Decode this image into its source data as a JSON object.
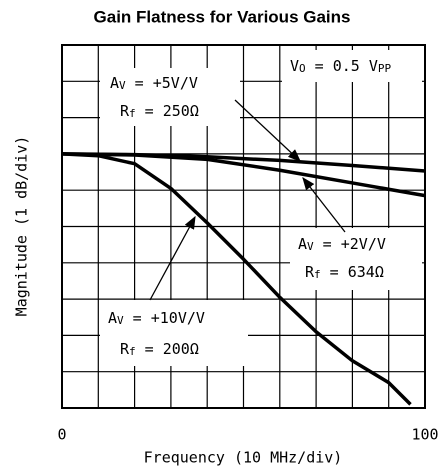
{
  "chart_data": {
    "type": "line",
    "title": "Gain Flatness for Various Gains",
    "xlabel": "Frequency (10 MHz/div)",
    "ylabel": "Magnitude (1 dB/div)",
    "xlim": [
      0,
      100
    ],
    "ylim": [
      -7,
      3
    ],
    "xticks": [
      0,
      100
    ],
    "xgrid": [
      10,
      20,
      30,
      40,
      50,
      60,
      70,
      80,
      90
    ],
    "ygrid": [
      -6,
      -5,
      -4,
      -3,
      -2,
      -1,
      0,
      1,
      2
    ],
    "grid": true,
    "color": "#000000",
    "annotation": [
      {
        "t": "V"
      },
      {
        "t": "O",
        "sub": true
      },
      {
        "t": " = 0.5 V"
      },
      {
        "t": "PP",
        "sub": true
      }
    ],
    "series": [
      {
        "label": [
          [
            {
              "t": "A"
            },
            {
              "t": "V",
              "sub": true
            },
            {
              "t": " = +5V/V"
            }
          ],
          [
            {
              "t": "R"
            },
            {
              "t": "f",
              "sub": true
            },
            {
              "t": " = 250Ω"
            }
          ]
        ],
        "x": [
          0,
          20,
          40,
          60,
          80,
          100
        ],
        "values": [
          0,
          -0.02,
          -0.08,
          -0.18,
          -0.32,
          -0.47
        ]
      },
      {
        "label": [
          [
            {
              "t": "A"
            },
            {
              "t": "V",
              "sub": true
            },
            {
              "t": " = +2V/V"
            }
          ],
          [
            {
              "t": "R"
            },
            {
              "t": "f",
              "sub": true
            },
            {
              "t": " = 634Ω"
            }
          ]
        ],
        "x": [
          0,
          20,
          40,
          60,
          80,
          100
        ],
        "values": [
          0,
          -0.03,
          -0.15,
          -0.45,
          -0.8,
          -1.15
        ]
      },
      {
        "label": [
          [
            {
              "t": "A"
            },
            {
              "t": "V",
              "sub": true
            },
            {
              "t": " = +10V/V"
            }
          ],
          [
            {
              "t": "R"
            },
            {
              "t": "f",
              "sub": true
            },
            {
              "t": " = 200Ω"
            }
          ]
        ],
        "x": [
          0,
          10,
          20,
          30,
          40,
          50,
          60,
          70,
          80,
          90,
          96
        ],
        "values": [
          0,
          -0.05,
          -0.27,
          -0.95,
          -1.9,
          -2.9,
          -3.95,
          -4.9,
          -5.7,
          -6.3,
          -6.9
        ]
      }
    ]
  }
}
